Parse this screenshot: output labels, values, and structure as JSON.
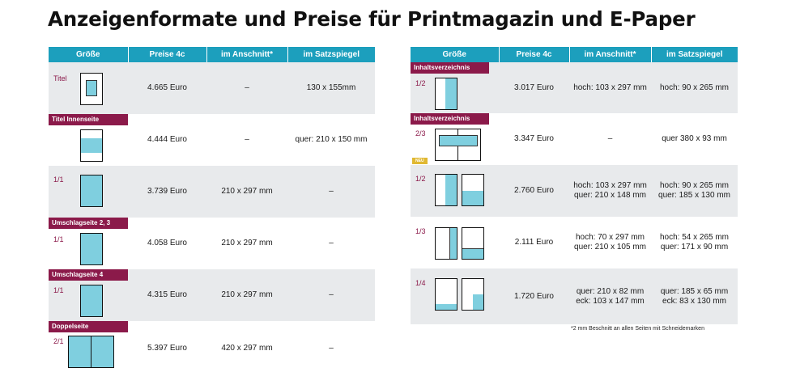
{
  "title": "Anzeigenformate und Preise für Printmagazin und E-Paper",
  "headers": [
    "Größe",
    "Preise 4c",
    "im Anschnitt*",
    "im Satzspiegel"
  ],
  "left_rows": [
    {
      "badge": "",
      "label": "Titel",
      "price": "4.665 Euro",
      "anschnitt": "–",
      "satzspiegel": "130 x 155mm"
    },
    {
      "badge": "Titel Innenseite",
      "label": "",
      "price": "4.444 Euro",
      "anschnitt": "–",
      "satzspiegel": "quer: 210 x 150 mm"
    },
    {
      "badge": "",
      "label": "1/1",
      "price": "3.739 Euro",
      "anschnitt": "210 x 297 mm",
      "satzspiegel": "–"
    },
    {
      "badge": "Umschlagseite 2, 3",
      "label": "1/1",
      "price": "4.058 Euro",
      "anschnitt": "210 x 297 mm",
      "satzspiegel": "–"
    },
    {
      "badge": "Umschlagseite 4",
      "label": "1/1",
      "price": "4.315 Euro",
      "anschnitt": "210 x 297 mm",
      "satzspiegel": "–"
    },
    {
      "badge": "Doppelseite",
      "label": "2/1",
      "price": "5.397 Euro",
      "anschnitt": "420 x 297 mm",
      "satzspiegel": "–"
    }
  ],
  "right_rows": [
    {
      "badge": "Inhaltsverzeichnis",
      "label": "1/2",
      "price": "3.017 Euro",
      "anschnitt": [
        "hoch: 103 x 297 mm"
      ],
      "satzspiegel": [
        "hoch: 90 x 265 mm"
      ]
    },
    {
      "badge": "Inhaltsverzeichnis",
      "label": "2/3",
      "neu": "NEU",
      "price": "3.347 Euro",
      "anschnitt": [
        "–"
      ],
      "satzspiegel": [
        "quer 380 x 93 mm"
      ]
    },
    {
      "badge": "",
      "label": "1/2",
      "price": "2.760 Euro",
      "anschnitt": [
        "hoch: 103 x 297 mm",
        "quer: 210 x 148 mm"
      ],
      "satzspiegel": [
        "hoch: 90 x 265 mm",
        "quer: 185 x 130 mm"
      ]
    },
    {
      "badge": "",
      "label": "1/3",
      "price": "2.111 Euro",
      "anschnitt": [
        "hoch: 70 x 297 mm",
        "quer: 210 x 105 mm"
      ],
      "satzspiegel": [
        "hoch: 54 x 265 mm",
        "quer: 171 x 90 mm"
      ]
    },
    {
      "badge": "",
      "label": "1/4",
      "price": "1.720 Euro",
      "anschnitt": [
        "quer: 210 x 82 mm",
        "eck: 103 x 147 mm"
      ],
      "satzspiegel": [
        "quer: 185 x 65 mm",
        "eck: 83 x 130 mm"
      ]
    }
  ],
  "footnote": "*2 mm Beschnitt an allen Seiten mit Schneidemarken",
  "colors": {
    "header": "#1c9fbd",
    "badge": "#8b1a4a",
    "fill": "#7fcfdf",
    "shade": "#e8eaec",
    "neu": "#e0b832"
  }
}
